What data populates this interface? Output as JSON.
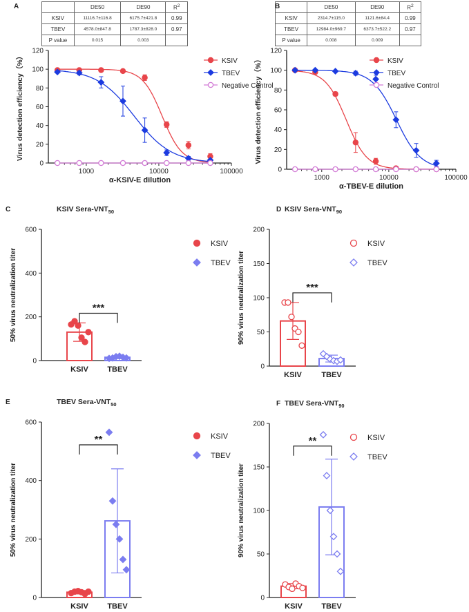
{
  "tables": [
    {
      "panel": "A",
      "headers": [
        "",
        "DE50",
        "DE90",
        "R2"
      ],
      "rows": [
        [
          "KSIV",
          "11116.7±116.8",
          "6175.7±421.8",
          "0.99"
        ],
        [
          "TBEV",
          "4578.0±847.8",
          "1787.3±828.0",
          "0.97"
        ],
        [
          "P value",
          "0.015",
          "0.003",
          ""
        ]
      ]
    },
    {
      "panel": "B",
      "headers": [
        "",
        "DE50",
        "DE90",
        "R2"
      ],
      "rows": [
        [
          "KSIV",
          "2314.7±115.0",
          "1121.6±84.4",
          "0.99"
        ],
        [
          "TBEV",
          "12984.0±969.7",
          "6373.7±522.2",
          "0.97"
        ],
        [
          "P value",
          "0.008",
          "0.009",
          ""
        ]
      ]
    }
  ],
  "colors": {
    "ksiv": "#e8454a",
    "tbev": "#1c3be0",
    "neg": "#d27ad6",
    "tbev_bar": "#7b7df0"
  },
  "chart_data": [
    {
      "panel": "A",
      "type": "line",
      "xscale": "log",
      "xlabel": "α-KSIV-E dilution",
      "ylabel": "Virus detection efficiency（%）",
      "ylim": [
        0,
        120
      ],
      "yticks": [
        0,
        20,
        40,
        60,
        80,
        100,
        120
      ],
      "xticks": [
        "1000",
        "10000",
        "100000"
      ],
      "x": [
        400,
        800,
        1600,
        3200,
        6400,
        12800,
        25600,
        51200
      ],
      "series": [
        {
          "name": "KSIV",
          "values": [
            99,
            99,
            99,
            98,
            91,
            41,
            19,
            7
          ],
          "err": [
            1,
            1,
            1,
            1,
            3,
            3,
            4,
            3
          ],
          "ec50": 11117,
          "hill": 3.2
        },
        {
          "name": "TBEV",
          "values": [
            97,
            96,
            86,
            66,
            35,
            11,
            5,
            3
          ],
          "err": [
            1,
            2,
            6,
            16,
            13,
            3,
            2,
            1
          ],
          "ec50": 4578,
          "hill": 1.7
        },
        {
          "name": "Negative Control",
          "values": [
            0,
            0,
            0,
            0,
            0,
            0,
            0,
            0
          ],
          "err": [
            0,
            0,
            0,
            0,
            0,
            0,
            0,
            0
          ]
        }
      ]
    },
    {
      "panel": "B",
      "type": "line",
      "xscale": "log",
      "xlabel": "α-TBEV-E dilution",
      "ylabel": "Virus detection efficiency（%）",
      "ylim": [
        0,
        120
      ],
      "yticks": [
        0,
        20,
        40,
        60,
        80,
        100,
        120
      ],
      "xticks": [
        "1000",
        "10000",
        "100000"
      ],
      "x": [
        400,
        800,
        1600,
        3200,
        6400,
        12800,
        25600,
        51200
      ],
      "series": [
        {
          "name": "KSIV",
          "values": [
            100,
            98,
            76,
            27,
            8,
            1,
            0,
            0
          ],
          "err": [
            1,
            1,
            2,
            10,
            3,
            1,
            0,
            0
          ],
          "ec50": 2315,
          "hill": 2.8
        },
        {
          "name": "TBEV",
          "values": [
            100,
            100,
            99,
            97,
            91,
            50,
            19,
            6
          ],
          "err": [
            1,
            1,
            1,
            2,
            4,
            8,
            7,
            3
          ],
          "ec50": 12984,
          "hill": 2.4
        },
        {
          "name": "Negative Control",
          "values": [
            0,
            0,
            0,
            0,
            0,
            0,
            0,
            0
          ],
          "err": [
            0,
            0,
            0,
            0,
            0,
            0,
            0,
            0
          ]
        }
      ]
    },
    {
      "panel": "C",
      "type": "bar",
      "title": "KSIV Sera-VNT",
      "title_sub": "50",
      "ylabel": "50% virus neutralization titer",
      "ylim": [
        0,
        600
      ],
      "yticks": [
        0,
        200,
        400,
        600
      ],
      "categories": [
        "KSIV",
        "TBEV"
      ],
      "values": [
        130,
        15
      ],
      "err": [
        42,
        6
      ],
      "points": [
        [
          165,
          180,
          160,
          105,
          85,
          130
        ],
        [
          10,
          12,
          18,
          20,
          15,
          12
        ]
      ],
      "sig": "***",
      "filled": true
    },
    {
      "panel": "D",
      "type": "bar",
      "title": "KSIV Sera-VNT",
      "title_sub": "90",
      "ylabel": "90% virus neutralization titer",
      "ylim": [
        0,
        200
      ],
      "yticks": [
        0,
        50,
        100,
        150,
        200
      ],
      "categories": [
        "KSIV",
        "TBEV"
      ],
      "values": [
        66,
        11
      ],
      "err": [
        27,
        5
      ],
      "points": [
        [
          93,
          93,
          72,
          55,
          50,
          30
        ],
        [
          18,
          14,
          10,
          8,
          7,
          9
        ]
      ],
      "sig": "***",
      "filled": false
    },
    {
      "panel": "E",
      "type": "bar",
      "title": "TBEV Sera-VNT",
      "title_sub": "50",
      "ylabel": "50% virus neutralization titer",
      "ylim": [
        0,
        600
      ],
      "yticks": [
        0,
        200,
        400,
        600
      ],
      "categories": [
        "KSIV",
        "TBEV"
      ],
      "values": [
        18,
        262
      ],
      "err": [
        6,
        178
      ],
      "points": [
        [
          15,
          20,
          22,
          18,
          12,
          20
        ],
        [
          565,
          330,
          250,
          200,
          130,
          95
        ]
      ],
      "sig": "**",
      "filled": true
    },
    {
      "panel": "F",
      "type": "bar",
      "title": "TBEV Sera-VNT",
      "title_sub": "90",
      "ylabel": "90% virus neutralization titer",
      "ylim": [
        0,
        200
      ],
      "yticks": [
        0,
        50,
        100,
        150,
        200
      ],
      "categories": [
        "KSIV",
        "TBEV"
      ],
      "values": [
        13,
        104
      ],
      "err": [
        3,
        55
      ],
      "points": [
        [
          15,
          12,
          10,
          16,
          13,
          11
        ],
        [
          187,
          140,
          100,
          70,
          50,
          30
        ]
      ],
      "sig": "**",
      "filled": false
    }
  ]
}
